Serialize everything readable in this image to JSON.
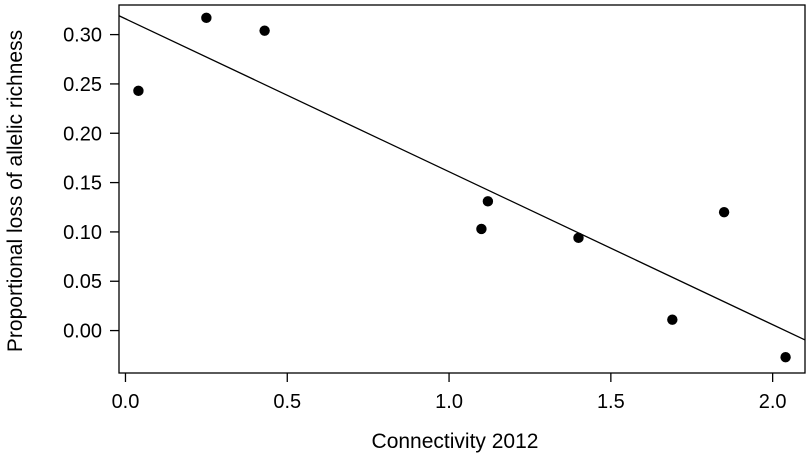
{
  "chart_data": {
    "type": "scatter",
    "title": "",
    "xlabel": "Connectivity 2012",
    "ylabel": "Proportional loss of allelic richness",
    "xlim": [
      -0.02,
      2.1
    ],
    "ylim": [
      -0.043,
      0.33
    ],
    "x_ticks": [
      0.0,
      0.5,
      1.0,
      1.5,
      2.0
    ],
    "x_tick_labels": [
      "0.0",
      "0.5",
      "1.0",
      "1.5",
      "2.0"
    ],
    "y_ticks": [
      0.0,
      0.05,
      0.1,
      0.15,
      0.2,
      0.25,
      0.3
    ],
    "y_tick_labels": [
      "0.00",
      "0.05",
      "0.10",
      "0.15",
      "0.20",
      "0.25",
      "0.30"
    ],
    "grid": false,
    "point_color": "#000000",
    "series": [
      {
        "x": [
          0.04,
          0.25,
          0.43,
          1.1,
          1.12,
          1.4,
          1.69,
          1.85,
          2.04
        ],
        "y": [
          0.243,
          0.317,
          0.304,
          0.103,
          0.131,
          0.094,
          0.011,
          0.12,
          -0.027
        ]
      }
    ],
    "fit_line": {
      "intercept": 0.316,
      "slope": -0.155
    }
  }
}
